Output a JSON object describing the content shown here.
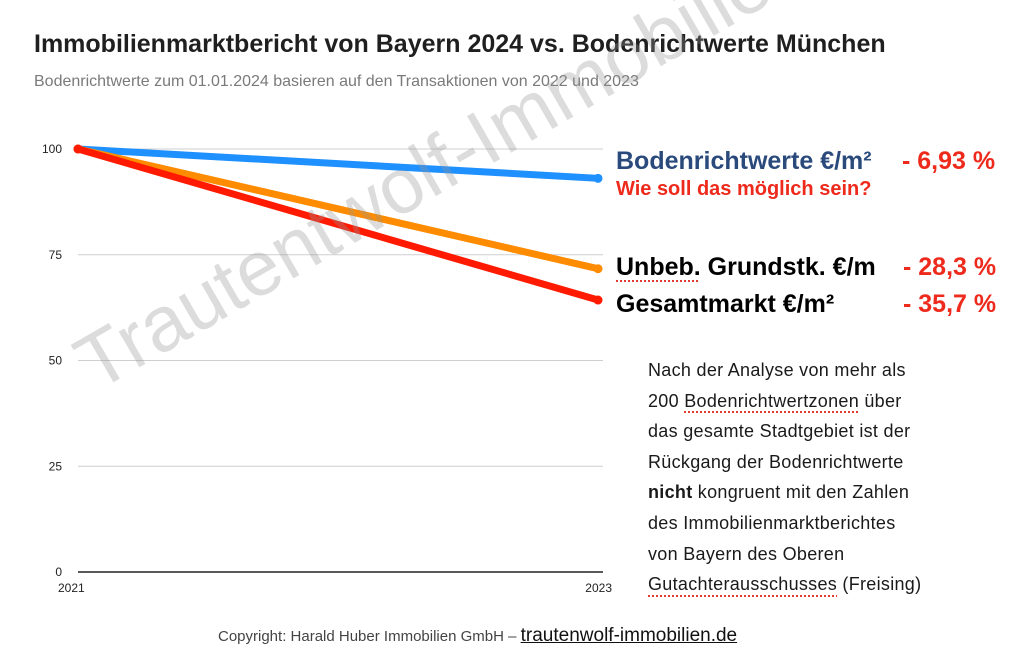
{
  "title": "Immobilienmarktbericht von Bayern 2024 vs. Bodenrichtwerte München",
  "subtitle": "Bodenrichtwerte zum 01.01.2024 basieren auf den Transaktionen von 2022 und 2023",
  "labels": {
    "bodenrichtwerte_name": "Bodenrichtwerte €/m²",
    "bodenrichtwerte_value": "- 6,93 %",
    "question": "Wie soll das möglich sein?",
    "unbeb_name_word": "Unbeb.",
    "unbeb_name_rest": " Grundstk. €/m",
    "unbeb_value": "- 28,3 %",
    "gesamt_name": "Gesamtmarkt €/m²",
    "gesamt_value": "- 35,7 %"
  },
  "paragraph": {
    "l1": "Nach der Analyse von mehr als",
    "l2_pre": "200 ",
    "l2_word": "Bodenrichtwertzonen",
    "l2_post": " über",
    "l3": "das gesamte Stadtgebiet ist der",
    "l4": "Rückgang der Bodenrichtwerte",
    "l5_bold": "nicht",
    "l5_rest": " kongruent mit den Zahlen",
    "l6": "des Immobilienmarktberichtes",
    "l7": "von Bayern des Oberen",
    "l8_word": "Gutachterausschusses",
    "l8_rest": " (Freising)"
  },
  "footer": {
    "text": "Copyright:  Harald Huber Immobilien GmbH – ",
    "link": "trautenwolf-immobilien.de"
  },
  "watermark": "Trautentwolf-Immobilien.de",
  "chart_data": {
    "type": "line",
    "x": [
      "2021",
      "2023"
    ],
    "ylim": [
      0,
      100
    ],
    "yticks": [
      0,
      25,
      50,
      75,
      100
    ],
    "grid": true,
    "series": [
      {
        "name": "Bodenrichtwerte €/m²",
        "values": [
          100,
          93.07
        ],
        "color": "#1e90ff"
      },
      {
        "name": "Unbeb. Grundstk. €/m",
        "values": [
          100,
          71.7
        ],
        "color": "#ff8c00"
      },
      {
        "name": "Gesamtmarkt €/m²",
        "values": [
          100,
          64.3
        ],
        "color": "#ff1a00"
      }
    ]
  }
}
